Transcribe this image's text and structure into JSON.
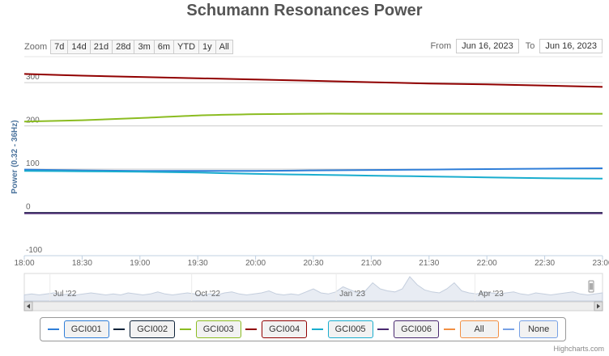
{
  "title": "Schumann Resonances Power",
  "range_selector": {
    "zoom_label": "Zoom",
    "buttons": [
      "7d",
      "14d",
      "21d",
      "28d",
      "3m",
      "6m",
      "YTD",
      "1y",
      "All"
    ],
    "from_label": "From",
    "from_value": "Jun 16, 2023",
    "to_label": "To",
    "to_value": "Jun 16, 2023"
  },
  "chart_data": {
    "type": "line",
    "ylabel": "Power (0.32 - 36Hz)",
    "ylim": [
      -100,
      360
    ],
    "y_ticks": [
      -100,
      0,
      100,
      200,
      300
    ],
    "x_range": [
      "18:00",
      "23:00"
    ],
    "x_ticks": [
      "18:00",
      "18:30",
      "19:00",
      "19:30",
      "20:00",
      "20:30",
      "21:00",
      "21:30",
      "22:00",
      "22:30",
      "23:00"
    ],
    "grid": true,
    "x": [
      "18:00",
      "18:30",
      "19:00",
      "19:30",
      "20:00",
      "20:30",
      "21:00",
      "21:30",
      "22:00",
      "22:30",
      "23:00"
    ],
    "series": [
      {
        "name": "GCI001",
        "color": "#2f7ed8",
        "values": [
          99,
          97,
          96,
          96,
          96,
          97,
          98,
          99,
          100,
          101,
          102
        ]
      },
      {
        "name": "GCI002",
        "color": "#0d233a",
        "values": [
          -1,
          -1,
          -1,
          -1,
          -1,
          -1,
          -1,
          -1,
          -1,
          -1,
          -1
        ]
      },
      {
        "name": "GCI003",
        "color": "#8bbc21",
        "values": [
          210,
          213,
          218,
          224,
          227,
          228,
          228,
          228,
          228,
          228,
          228
        ]
      },
      {
        "name": "GCI004",
        "color": "#910000",
        "values": [
          320,
          316,
          313,
          310,
          307,
          304,
          301,
          298,
          296,
          293,
          290
        ]
      },
      {
        "name": "GCI005",
        "color": "#1aadce",
        "values": [
          96,
          95,
          94,
          92,
          89,
          87,
          85,
          83,
          81,
          79,
          78
        ]
      },
      {
        "name": "GCI006",
        "color": "#492970",
        "values": [
          -2,
          -2,
          -2,
          -2,
          -2,
          -2,
          -2,
          -2,
          -2,
          -2,
          -2
        ]
      }
    ]
  },
  "navigator": {
    "labels": [
      "Jul '22",
      "Oct '22",
      "Jan '23",
      "Apr '23"
    ],
    "values": [
      6,
      7,
      6,
      7,
      8,
      6,
      7,
      6,
      7,
      8,
      7,
      6,
      7,
      6,
      8,
      7,
      6,
      7,
      9,
      7,
      6,
      7,
      8,
      7,
      6,
      7,
      6,
      8,
      9,
      7,
      6,
      7,
      8,
      10,
      7,
      6,
      7,
      6,
      9,
      12,
      8,
      7,
      9,
      14,
      11,
      8,
      10,
      18,
      12,
      10,
      9,
      12,
      24,
      16,
      11,
      9,
      8,
      12,
      18,
      10,
      8,
      7,
      9,
      8,
      7,
      8,
      9,
      7,
      6,
      8,
      7,
      6,
      7,
      8,
      9,
      7,
      6,
      7,
      8
    ]
  },
  "legend": {
    "items": [
      {
        "label": "GCI001",
        "color": "#2f7ed8"
      },
      {
        "label": "GCI002",
        "color": "#0d233a"
      },
      {
        "label": "GCI003",
        "color": "#8bbc21"
      },
      {
        "label": "GCI004",
        "color": "#910000"
      },
      {
        "label": "GCI005",
        "color": "#1aadce"
      },
      {
        "label": "GCI006",
        "color": "#492970"
      },
      {
        "label": "All",
        "color": "#f28f43"
      },
      {
        "label": "None",
        "color": "#77a1e5"
      }
    ]
  },
  "credits": "Highcharts.com"
}
